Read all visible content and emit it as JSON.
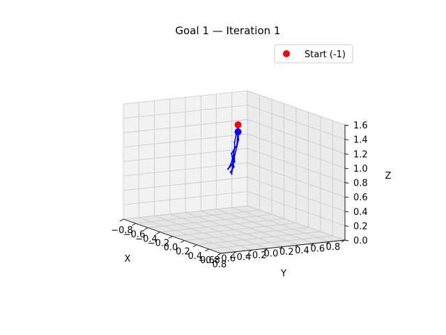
{
  "chart_data": {
    "type": "line3d",
    "title": "Goal 1 — Iteration 1",
    "xlabel": "X",
    "ylabel": "Y",
    "zlabel": "Z",
    "xlim": [
      -0.8,
      0.8
    ],
    "ylim": [
      -0.8,
      0.8
    ],
    "zlim": [
      0.0,
      1.6
    ],
    "x_ticks": [
      "−0.8",
      "−0.6",
      "−0.4",
      "−0.2",
      "0.0",
      "0.2",
      "0.4",
      "0.6",
      "0.8"
    ],
    "y_ticks": [
      "−0.8",
      "−0.6",
      "−0.4",
      "−0.2",
      "0.0",
      "0.2",
      "0.4",
      "0.6",
      "0.8"
    ],
    "z_ticks": [
      "0.0",
      "0.2",
      "0.4",
      "0.6",
      "0.8",
      "1.0",
      "1.2",
      "1.4",
      "1.6"
    ],
    "grid": true,
    "legend_position": "top-right",
    "legend": [
      {
        "label": "Start (-1)",
        "color": "#ff0000",
        "marker": "circle"
      }
    ],
    "start_point": {
      "label": "Start (-1)",
      "x": 0.05,
      "y": 0.0,
      "z": 1.45
    },
    "series": [
      {
        "color": "#0000ff",
        "points": [
          {
            "x": 0.05,
            "y": 0.0,
            "z": 1.45
          },
          {
            "x": 0.03,
            "y": 0.0,
            "z": 1.34
          },
          {
            "x": -0.01,
            "y": 0.02,
            "z": 1.22
          },
          {
            "x": 0.03,
            "y": -0.03,
            "z": 1.12
          },
          {
            "x": -0.02,
            "y": 0.01,
            "z": 1.02
          },
          {
            "x": -0.03,
            "y": -0.02,
            "z": 0.9
          },
          {
            "x": -0.08,
            "y": 0.0,
            "z": 0.85
          },
          {
            "x": -0.01,
            "y": 0.02,
            "z": 0.95
          },
          {
            "x": 0.01,
            "y": -0.02,
            "z": 1.08
          },
          {
            "x": -0.02,
            "y": 0.0,
            "z": 0.92
          },
          {
            "x": -0.04,
            "y": 0.01,
            "z": 0.78
          },
          {
            "x": 0.0,
            "y": 0.0,
            "z": 1.0
          },
          {
            "x": 0.04,
            "y": 0.02,
            "z": 1.25
          },
          {
            "x": 0.05,
            "y": 0.0,
            "z": 1.38
          },
          {
            "x": 0.02,
            "y": 0.02,
            "z": 1.18
          },
          {
            "x": -0.01,
            "y": -0.03,
            "z": 1.05
          },
          {
            "x": -0.02,
            "y": 0.02,
            "z": 0.88
          },
          {
            "x": -0.04,
            "y": -0.01,
            "z": 0.8
          }
        ]
      }
    ],
    "colors": {
      "pane_back": "#f2f2f2",
      "pane_side": "#ebebeb",
      "pane_floor": "#e5e5e5",
      "grid": "#c8c8c8",
      "axis": "#000000",
      "line": "#0000ff",
      "start_marker": "#ff0000"
    }
  }
}
